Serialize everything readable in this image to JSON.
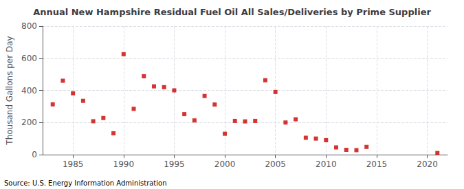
{
  "chart_data": {
    "type": "scatter",
    "title": "Annual New Hampshire Residual Fuel Oil All Sales/Deliveries by Prime Supplier",
    "ylabel": "Thousand Gallons per Day",
    "source": "Source: U.S. Energy Information Administration",
    "x": [
      1983,
      1984,
      1985,
      1986,
      1987,
      1988,
      1989,
      1990,
      1991,
      1992,
      1993,
      1994,
      1995,
      1996,
      1997,
      1998,
      1999,
      2000,
      2001,
      2002,
      2003,
      2004,
      2005,
      2006,
      2007,
      2008,
      2009,
      2010,
      2011,
      2012,
      2013,
      2014,
      2021
    ],
    "values": [
      313,
      460,
      382,
      335,
      208,
      228,
      133,
      625,
      285,
      488,
      425,
      420,
      400,
      252,
      213,
      365,
      312,
      130,
      210,
      207,
      210,
      463,
      390,
      200,
      220,
      105,
      100,
      90,
      45,
      30,
      28,
      48,
      10
    ],
    "color": "#cc0000",
    "marker": "square",
    "xlim": [
      1982,
      2022
    ],
    "ylim": [
      0,
      800
    ],
    "xticks": [
      1985,
      1990,
      1995,
      2000,
      2005,
      2010,
      2015,
      2020
    ],
    "yticks": [
      0,
      200,
      400,
      600,
      800
    ],
    "grid": true
  }
}
